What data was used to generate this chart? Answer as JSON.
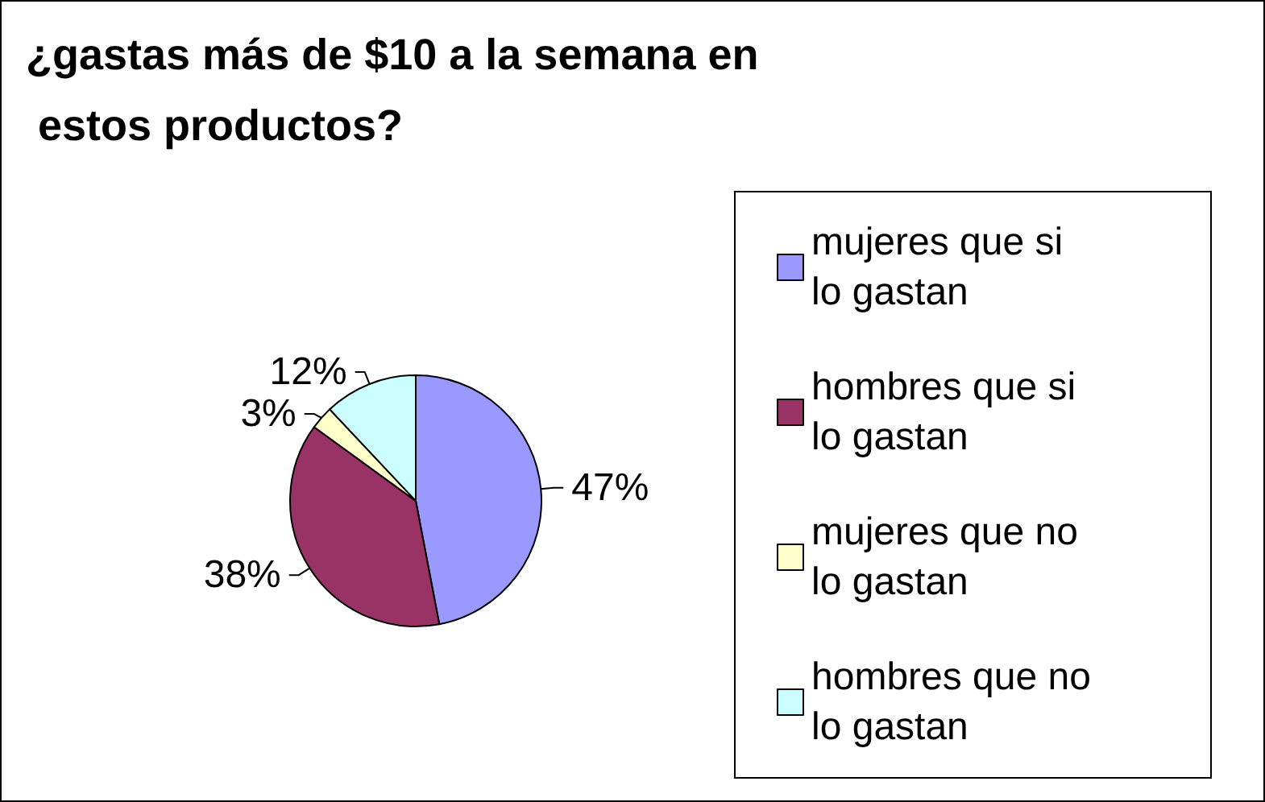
{
  "chart_data": {
    "type": "pie",
    "title": "¿gastas más de $10 a la semana en estos productos?",
    "categories": [
      "mujeres que si lo gastan",
      "hombres que si lo gastan",
      "mujeres que no lo gastan",
      "hombres que no lo gastan"
    ],
    "values": [
      47,
      38,
      3,
      12
    ],
    "value_labels": [
      "47%",
      "38%",
      "3%",
      "12%"
    ],
    "colors": [
      "#9999ff",
      "#993366",
      "#ffffcc",
      "#ccffff"
    ],
    "legend": "right"
  }
}
